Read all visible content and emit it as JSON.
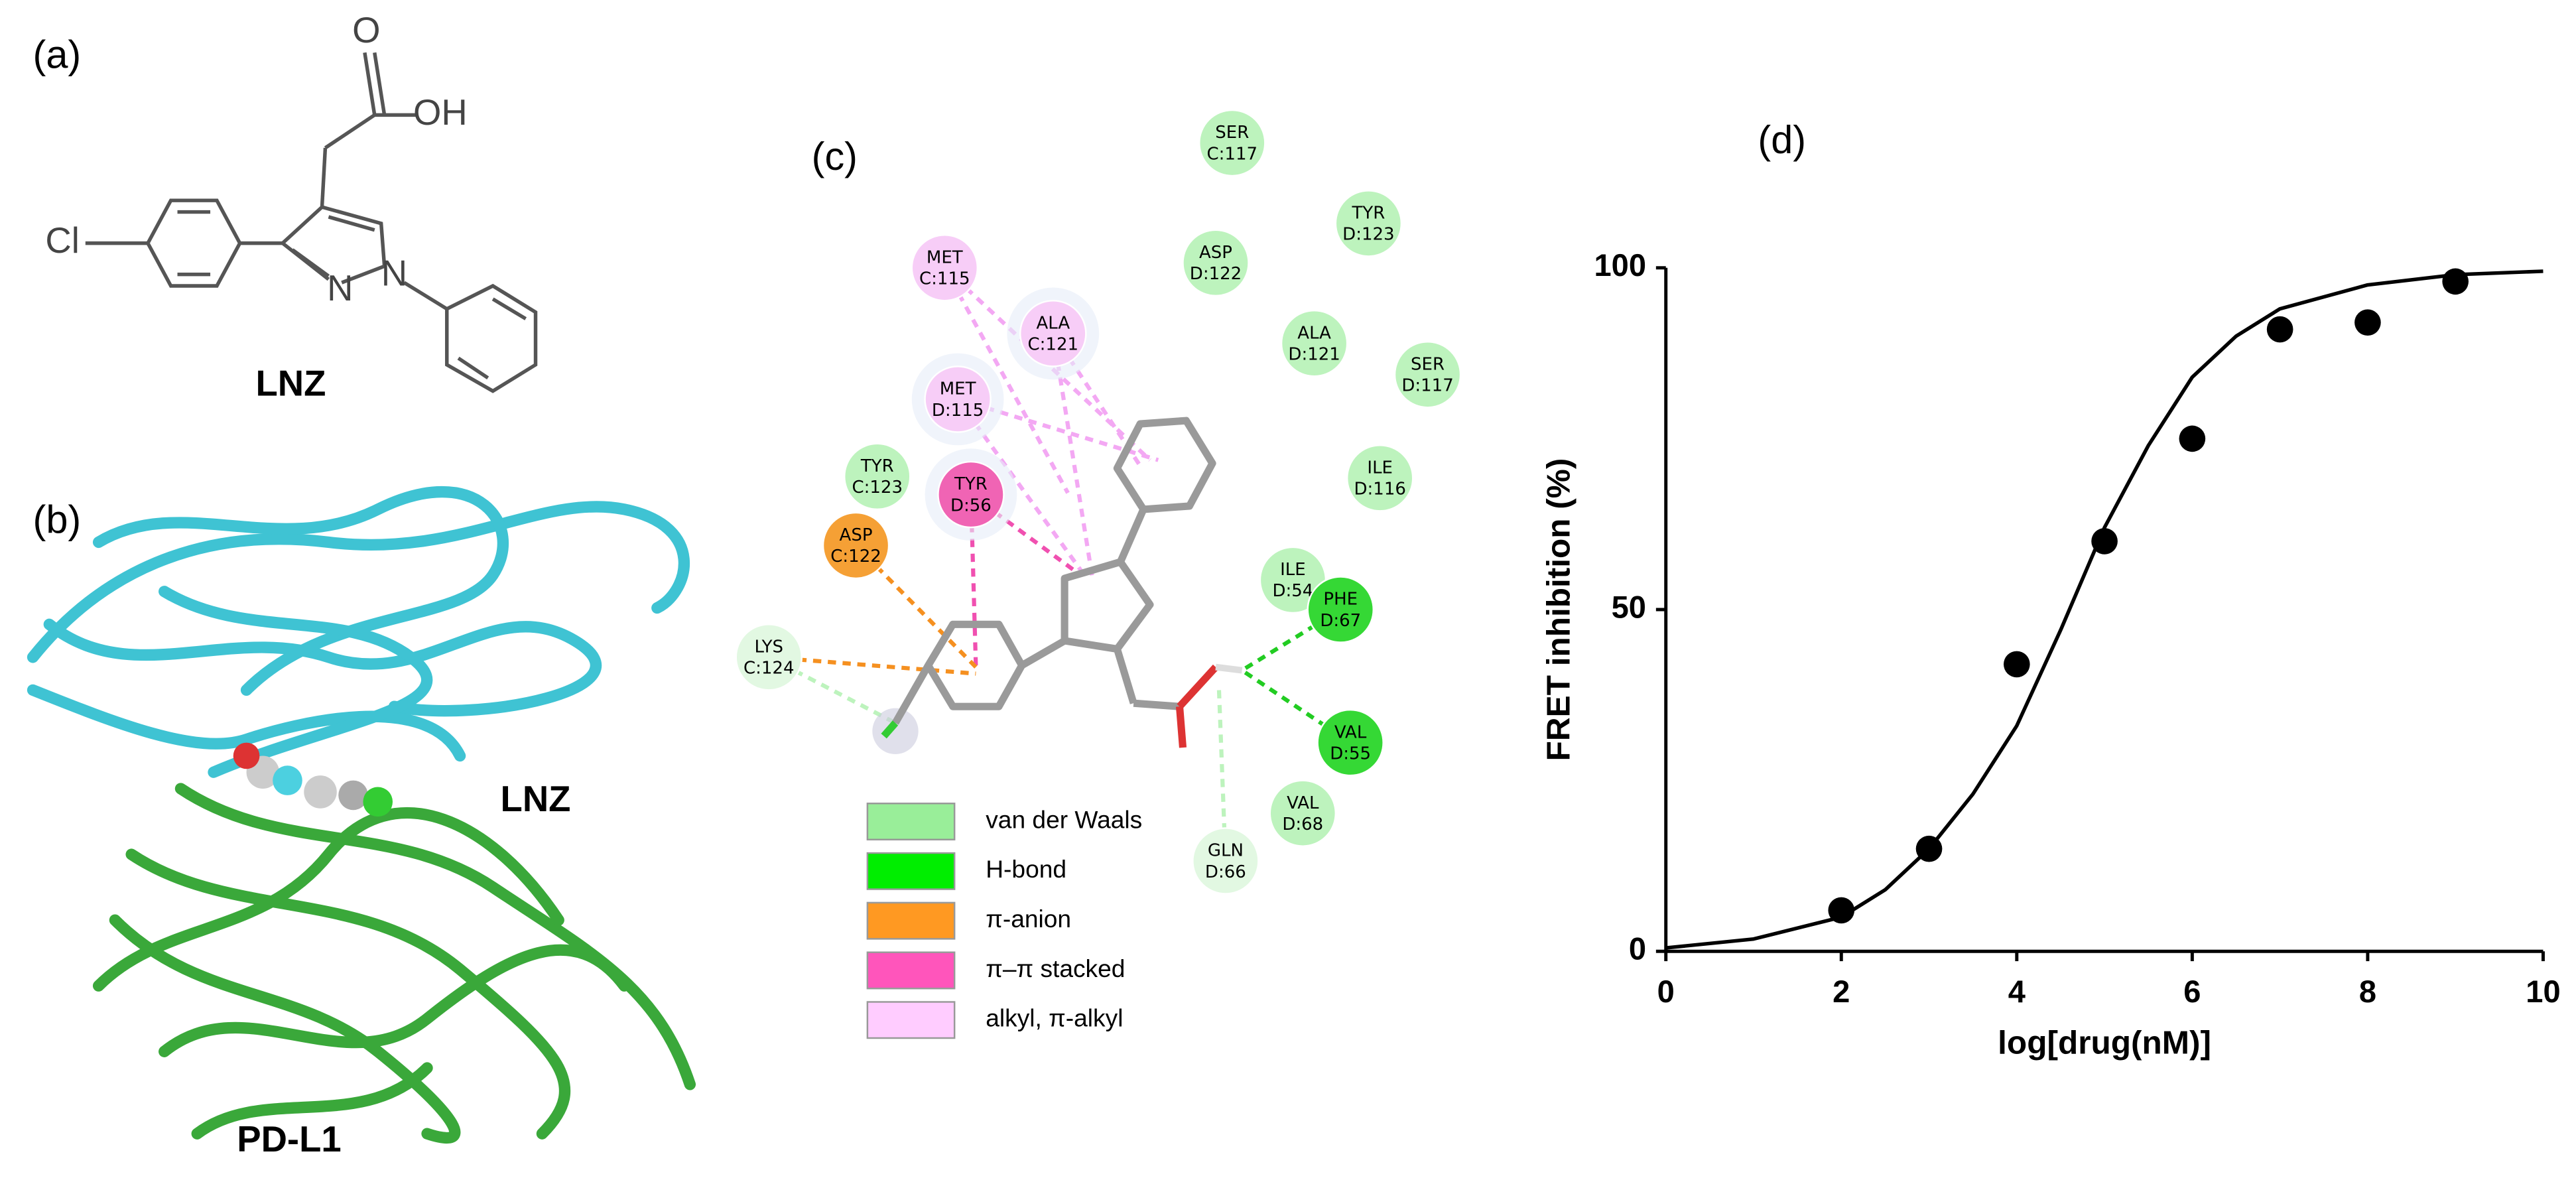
{
  "panels": {
    "a": "(a)",
    "b": "(b)",
    "c": "(c)",
    "d": "(d)"
  },
  "structure": {
    "atoms": [
      "O",
      "OH",
      "Cl",
      "N",
      "N"
    ],
    "name": "LNZ"
  },
  "protein": {
    "ligand": "LNZ",
    "protein": "PD-L1"
  },
  "interactions": {
    "residues": [
      {
        "name": "SER",
        "chain": "C:117",
        "color": "#bdf3bd"
      },
      {
        "name": "TYR",
        "chain": "D:123",
        "color": "#bdf3bd"
      },
      {
        "name": "ASP",
        "chain": "D:122",
        "color": "#bdf3bd"
      },
      {
        "name": "MET",
        "chain": "C:115",
        "color": "#f7cdf7"
      },
      {
        "name": "ALA",
        "chain": "C:121",
        "color": "#f7cdf7"
      },
      {
        "name": "ALA",
        "chain": "D:121",
        "color": "#bdf3bd"
      },
      {
        "name": "SER",
        "chain": "D:117",
        "color": "#bdf3bd"
      },
      {
        "name": "MET",
        "chain": "D:115",
        "color": "#f7cdf7"
      },
      {
        "name": "ILE",
        "chain": "D:116",
        "color": "#bdf3bd"
      },
      {
        "name": "TYR",
        "chain": "C:123",
        "color": "#bdf3bd"
      },
      {
        "name": "TYR",
        "chain": "D:56",
        "color": "#f064b4"
      },
      {
        "name": "ASP",
        "chain": "C:122",
        "color": "#f5a035"
      },
      {
        "name": "ILE",
        "chain": "D:54",
        "color": "#bdf3bd"
      },
      {
        "name": "PHE",
        "chain": "D:67",
        "color": "#35d835"
      },
      {
        "name": "LYS",
        "chain": "C:124",
        "color": "#e2f8e2"
      },
      {
        "name": "VAL",
        "chain": "D:55",
        "color": "#35d835"
      },
      {
        "name": "VAL",
        "chain": "D:68",
        "color": "#bdf3bd"
      },
      {
        "name": "GLN",
        "chain": "D:66",
        "color": "#e2f8e2"
      }
    ],
    "legend": [
      {
        "label": "van der Waals",
        "color": "#99ee99"
      },
      {
        "label": "H-bond",
        "color": "#00ee00"
      },
      {
        "label": "π-anion",
        "color": "#ff9922"
      },
      {
        "label": "π–π stacked",
        "color": "#ff55bb"
      },
      {
        "label": "alkyl, π-alkyl",
        "color": "#ffccff"
      }
    ]
  },
  "chart_data": {
    "type": "scatter",
    "x_label": "log[drug(nM)]",
    "y_label": "FRET inhibition (%)",
    "xlim": [
      0,
      10
    ],
    "xticks": [
      0,
      2,
      4,
      6,
      8,
      10
    ],
    "ylim": [
      0,
      100
    ],
    "yticks": [
      0,
      50,
      100
    ],
    "series": [
      {
        "type": "scatter",
        "color": "#000000",
        "x": [
          2,
          3,
          4,
          5,
          6,
          7,
          8,
          9
        ],
        "values": [
          6,
          15,
          42,
          60,
          75,
          91,
          92,
          98
        ]
      },
      {
        "type": "line",
        "color": "#000000",
        "x": [
          0,
          1,
          2,
          2.5,
          3,
          3.5,
          4,
          4.5,
          5,
          5.5,
          6,
          6.5,
          7,
          8,
          9,
          10
        ],
        "values": [
          0.5,
          1.8,
          5,
          9,
          15,
          23,
          33,
          47,
          62,
          74,
          84,
          90,
          94,
          97.5,
          99,
          99.5
        ]
      }
    ]
  }
}
